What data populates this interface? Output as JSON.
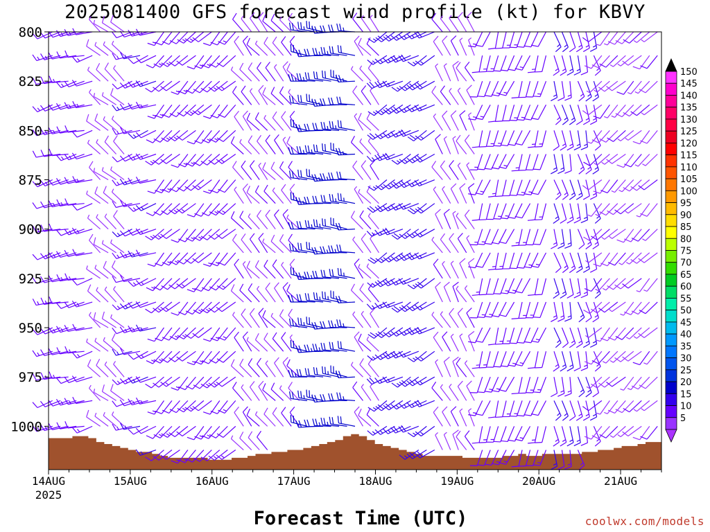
{
  "title": "2025081400 GFS forecast wind profile (kt) for KBVY",
  "credit": "coolwx.com/models",
  "chart_data": {
    "type": "wind-barb-profile",
    "title": "2025081400 GFS forecast wind profile (kt) for KBVY",
    "xlabel": "Forecast Time (UTC)",
    "ylabel": "",
    "y_ticks": [
      "800",
      "825",
      "850",
      "875",
      "900",
      "925",
      "950",
      "975",
      "1000"
    ],
    "y_range": [
      800,
      1022
    ],
    "x_ticks": [
      {
        "label": "14AUG",
        "sublabel": "2025"
      },
      {
        "label": "15AUG",
        "sublabel": ""
      },
      {
        "label": "16AUG",
        "sublabel": ""
      },
      {
        "label": "17AUG",
        "sublabel": ""
      },
      {
        "label": "18AUG",
        "sublabel": ""
      },
      {
        "label": "19AUG",
        "sublabel": ""
      },
      {
        "label": "20AUG",
        "sublabel": ""
      },
      {
        "label": "21AUG",
        "sublabel": ""
      }
    ],
    "x_range_days": [
      0,
      7.5
    ],
    "surface_pressure": [
      1006,
      1006,
      1006,
      1005,
      1005,
      1006,
      1008,
      1009,
      1010,
      1011,
      1012,
      1013,
      1013,
      1014,
      1015,
      1016,
      1016,
      1016,
      1016,
      1016,
      1017,
      1017,
      1017,
      1016,
      1016,
      1015,
      1014,
      1014,
      1013,
      1013,
      1012,
      1012,
      1011,
      1010,
      1009,
      1008,
      1007,
      1005,
      1004,
      1005,
      1007,
      1009,
      1010,
      1011,
      1012,
      1013,
      1014,
      1015,
      1015,
      1015,
      1015,
      1015,
      1016,
      1016,
      1016,
      1016,
      1016,
      1015,
      1015,
      1014,
      1015,
      1015,
      1014,
      1014,
      1014,
      1014,
      1014,
      1013,
      1013,
      1012,
      1012,
      1011,
      1010,
      1010,
      1009,
      1008,
      1008
    ],
    "color_scale": {
      "values": [
        5,
        10,
        15,
        20,
        25,
        30,
        35,
        40,
        45,
        50,
        55,
        60,
        65,
        70,
        75,
        80,
        85,
        90,
        95,
        100,
        105,
        110,
        115,
        120,
        125,
        130,
        135,
        140,
        145,
        150
      ],
      "colors": [
        "#9933ff",
        "#6600ff",
        "#3300ee",
        "#0000cc",
        "#0033dd",
        "#0055ee",
        "#0077ff",
        "#0099ff",
        "#00bbee",
        "#00ddcc",
        "#00eeaa",
        "#00dd66",
        "#00cc22",
        "#33dd00",
        "#77ee00",
        "#bbff00",
        "#ffff00",
        "#ffdd00",
        "#ffbb00",
        "#ff9900",
        "#ff7700",
        "#ff5500",
        "#ff3300",
        "#ff0000",
        "#ee0022",
        "#ff0044",
        "#ff0066",
        "#ff0099",
        "#ff00cc",
        "#ff33ff"
      ]
    },
    "levels": [
      800,
      812,
      825,
      837,
      850,
      862,
      875,
      887,
      900,
      912,
      925,
      937,
      950,
      962,
      975,
      987,
      1000,
      1012
    ],
    "wind_profile_kt": [
      {
        "day_start": 0.0,
        "day_end": 0.6,
        "speed": 12,
        "dir": 255
      },
      {
        "day_start": 0.6,
        "day_end": 1.0,
        "speed": 7,
        "dir": 310
      },
      {
        "day_start": 1.0,
        "day_end": 1.4,
        "speed": 13,
        "dir": 250
      },
      {
        "day_start": 1.4,
        "day_end": 2.3,
        "speed": 12,
        "dir": 225
      },
      {
        "day_start": 2.3,
        "day_end": 3.1,
        "speed": 9,
        "dir": 320
      },
      {
        "day_start": 3.1,
        "day_end": 3.8,
        "speed": 22,
        "dir": 275
      },
      {
        "day_start": 3.8,
        "day_end": 4.1,
        "speed": 8,
        "dir": 320
      },
      {
        "day_start": 4.1,
        "day_end": 4.8,
        "speed": 17,
        "dir": 240
      },
      {
        "day_start": 4.8,
        "day_end": 5.3,
        "speed": 8,
        "dir": 330
      },
      {
        "day_start": 5.3,
        "day_end": 6.1,
        "speed": 12,
        "dir": 200
      },
      {
        "day_start": 6.1,
        "day_end": 6.7,
        "speed": 14,
        "dir": 165
      },
      {
        "day_start": 6.7,
        "day_end": 7.5,
        "speed": 8,
        "dir": 225
      }
    ]
  }
}
